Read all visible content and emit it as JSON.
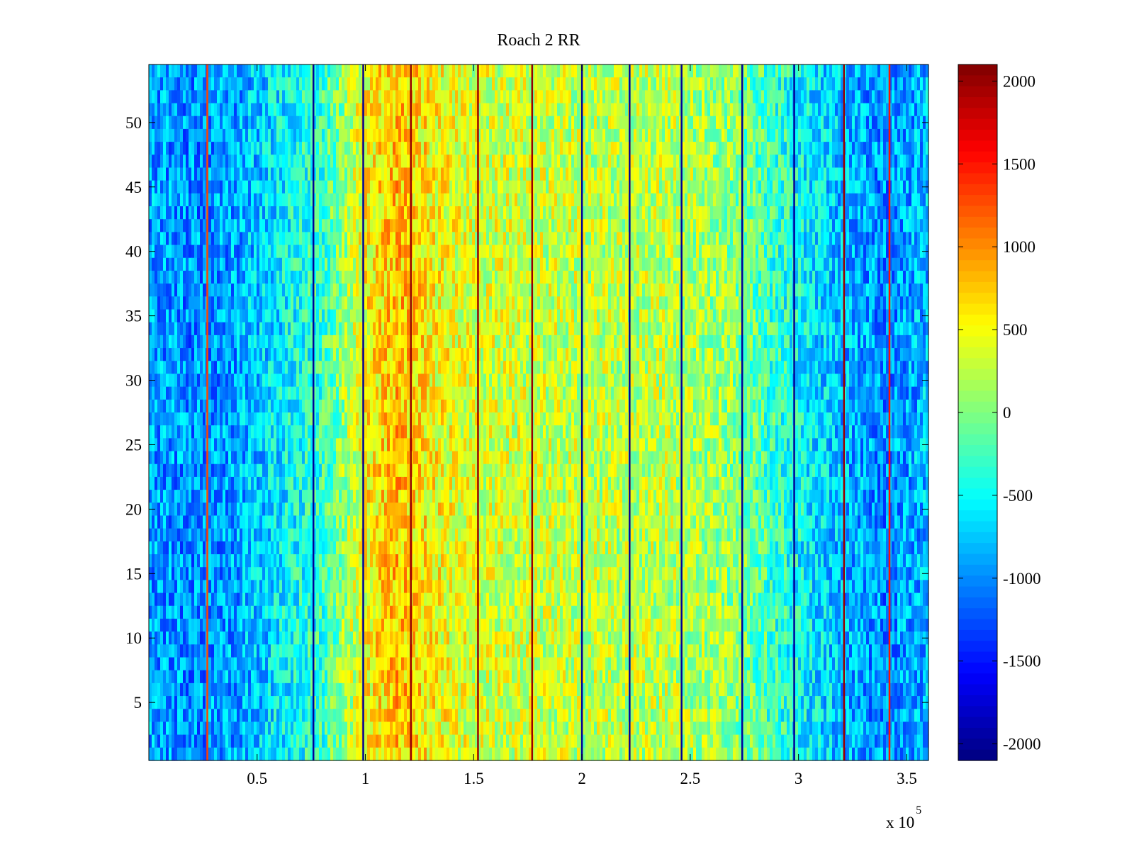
{
  "chart_data": {
    "type": "heatmap",
    "title": "Roach 2 RR",
    "xlabel": "",
    "ylabel": "",
    "x_exponent_label": "x 10",
    "x_exponent_power": "5",
    "xlim": [
      0,
      360000
    ],
    "ylim": [
      0.5,
      54.5
    ],
    "n_rows": 54,
    "x_ticks": [
      50000,
      100000,
      150000,
      200000,
      250000,
      300000,
      350000
    ],
    "x_tick_labels": [
      "0.5",
      "1",
      "1.5",
      "2",
      "2.5",
      "3",
      "3.5"
    ],
    "y_ticks": [
      5,
      10,
      15,
      20,
      25,
      30,
      35,
      40,
      45,
      50
    ],
    "y_tick_labels": [
      "5",
      "10",
      "15",
      "20",
      "25",
      "30",
      "35",
      "40",
      "45",
      "50"
    ],
    "colorbar": {
      "colormap": "jet",
      "clim": [
        -2100,
        2100
      ],
      "ticks": [
        2000,
        1500,
        1000,
        500,
        0,
        -500,
        -1000,
        -1500,
        -2000
      ],
      "tick_labels": [
        "2000",
        "1500",
        "1000",
        "500",
        "0",
        "-500",
        "-1000",
        "-1500",
        "-2000"
      ]
    },
    "column_profile": {
      "x": [
        0,
        20000,
        40000,
        60000,
        80000,
        100000,
        115000,
        130000,
        150000,
        180000,
        210000,
        240000,
        270000,
        300000,
        320000,
        340000,
        360000
      ],
      "value": [
        -900,
        -1000,
        -900,
        -600,
        -300,
        500,
        800,
        550,
        350,
        300,
        250,
        250,
        50,
        -500,
        -800,
        -1000,
        -800
      ]
    },
    "vertical_lines": [
      {
        "x": 27000,
        "value": 1300
      },
      {
        "x": 76000,
        "value": -2000
      },
      {
        "x": 99000,
        "value": -2000
      },
      {
        "x": 121000,
        "value": 2000
      },
      {
        "x": 152000,
        "value": 2000
      },
      {
        "x": 177000,
        "value": 2000
      },
      {
        "x": 200000,
        "value": -2000
      },
      {
        "x": 222000,
        "value": -2000
      },
      {
        "x": 246000,
        "value": -2000
      },
      {
        "x": 274000,
        "value": -2000
      },
      {
        "x": 298000,
        "value": -2000
      },
      {
        "x": 321000,
        "value": 2000
      },
      {
        "x": 342000,
        "value": 1500
      }
    ],
    "noise_amplitude": 450,
    "grid": false
  }
}
